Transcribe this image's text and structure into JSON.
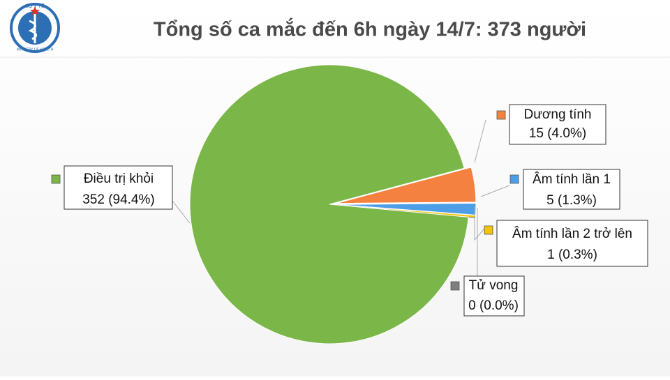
{
  "logo": {
    "top": "BỘ Y TẾ",
    "bottom": "MINISTRY OF HEALTH"
  },
  "chart_data": {
    "type": "pie",
    "title": "Tổng số ca mắc đến 6h ngày 14/7: 373 người",
    "categories": [
      "Điều trị khỏi",
      "Dương tính",
      "Âm tính lần 1",
      "Âm tính lần 2 trở lên",
      "Tử vong"
    ],
    "values": [
      352,
      15,
      5,
      1,
      0
    ],
    "value_labels": [
      "352 (94.4%)",
      "15 (4.0%)",
      "5 (1.3%)",
      "1 (0.3%)",
      "0 (0.0%)"
    ],
    "colors": [
      "#7ab648",
      "#f4813f",
      "#4d9ee6",
      "#f5c400",
      "#7f7f7f"
    ]
  }
}
